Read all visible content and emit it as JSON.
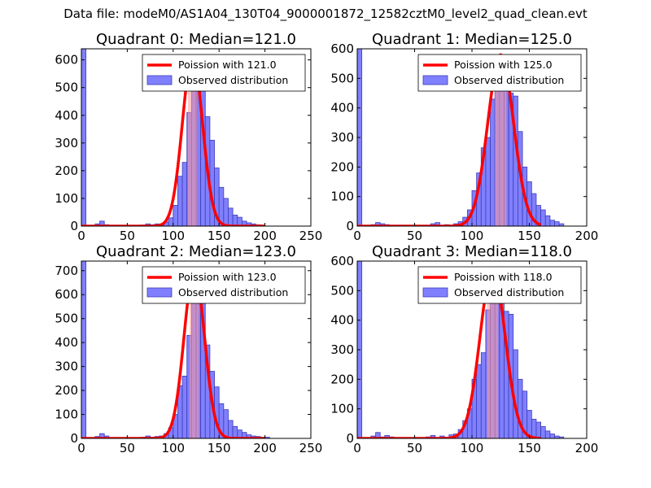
{
  "suptitle": "Data file: modeM0/AS1A04_130T04_9000001872_12582cztM0_level2_quad_clean.evt",
  "colors": {
    "bar_fill": "#8080ff",
    "bar_edge": "#3d3db8",
    "fit_line": "#ff0000",
    "band": "#ff9a9a"
  },
  "chart_data": [
    {
      "type": "bar",
      "title": "Quadrant 0: Median=121.0",
      "median": 121.0,
      "legend": {
        "placement": "top-right",
        "line_label": "Poission with 121.0",
        "bar_label": "Observed distribution"
      },
      "xlim": [
        0,
        250
      ],
      "ylim": [
        0,
        640
      ],
      "xticks": [
        0,
        50,
        100,
        150,
        200,
        250
      ],
      "yticks": [
        0,
        100,
        200,
        300,
        400,
        500,
        600
      ],
      "first_bin_value": 640,
      "bin_width": 5,
      "bins": [
        [
          15,
          8
        ],
        [
          20,
          18
        ],
        [
          25,
          5
        ],
        [
          65,
          4
        ],
        [
          70,
          8
        ],
        [
          75,
          5
        ],
        [
          80,
          8
        ],
        [
          85,
          5
        ],
        [
          90,
          15
        ],
        [
          95,
          30
        ],
        [
          100,
          75
        ],
        [
          105,
          180
        ],
        [
          110,
          230
        ],
        [
          115,
          410
        ],
        [
          120,
          510
        ],
        [
          125,
          555
        ],
        [
          130,
          505
        ],
        [
          135,
          395
        ],
        [
          140,
          310
        ],
        [
          145,
          210
        ],
        [
          150,
          140
        ],
        [
          155,
          100
        ],
        [
          160,
          65
        ],
        [
          165,
          40
        ],
        [
          170,
          32
        ],
        [
          175,
          18
        ],
        [
          180,
          12
        ],
        [
          185,
          8
        ],
        [
          190,
          5
        ],
        [
          195,
          4
        ]
      ],
      "fit_mean": 121.0,
      "fit_peak": 612
    },
    {
      "type": "bar",
      "title": "Quadrant 1: Median=125.0",
      "median": 125.0,
      "legend": {
        "placement": "top-right",
        "line_label": "Poission with 125.0",
        "bar_label": "Observed distribution"
      },
      "xlim": [
        0,
        200
      ],
      "ylim": [
        0,
        600
      ],
      "xticks": [
        0,
        50,
        100,
        150,
        200
      ],
      "yticks": [
        0,
        100,
        200,
        300,
        400,
        500,
        600
      ],
      "first_bin_value": 600,
      "bin_width": 4,
      "bins": [
        [
          12,
          5
        ],
        [
          16,
          12
        ],
        [
          20,
          8
        ],
        [
          24,
          5
        ],
        [
          64,
          8
        ],
        [
          68,
          12
        ],
        [
          76,
          5
        ],
        [
          84,
          8
        ],
        [
          88,
          15
        ],
        [
          92,
          30
        ],
        [
          96,
          55
        ],
        [
          100,
          120
        ],
        [
          104,
          180
        ],
        [
          108,
          265
        ],
        [
          112,
          300
        ],
        [
          116,
          430
        ],
        [
          120,
          545
        ],
        [
          124,
          580
        ],
        [
          128,
          540
        ],
        [
          132,
          450
        ],
        [
          136,
          440
        ],
        [
          140,
          320
        ],
        [
          144,
          200
        ],
        [
          148,
          150
        ],
        [
          152,
          110
        ],
        [
          156,
          70
        ],
        [
          160,
          55
        ],
        [
          164,
          35
        ],
        [
          168,
          20
        ],
        [
          172,
          15
        ],
        [
          176,
          8
        ]
      ],
      "fit_mean": 125.0,
      "fit_peak": 580
    },
    {
      "type": "bar",
      "title": "Quadrant 2: Median=123.0",
      "median": 123.0,
      "legend": {
        "placement": "top-right",
        "line_label": "Poission with 123.0",
        "bar_label": "Observed distribution"
      },
      "xlim": [
        0,
        250
      ],
      "ylim": [
        0,
        740
      ],
      "xticks": [
        0,
        50,
        100,
        150,
        200,
        250
      ],
      "yticks": [
        0,
        100,
        200,
        300,
        400,
        500,
        600,
        700
      ],
      "first_bin_value": 740,
      "bin_width": 5,
      "bins": [
        [
          15,
          8
        ],
        [
          20,
          20
        ],
        [
          25,
          10
        ],
        [
          65,
          5
        ],
        [
          70,
          10
        ],
        [
          75,
          5
        ],
        [
          80,
          8
        ],
        [
          85,
          10
        ],
        [
          90,
          20
        ],
        [
          95,
          45
        ],
        [
          100,
          100
        ],
        [
          105,
          220
        ],
        [
          110,
          260
        ],
        [
          115,
          430
        ],
        [
          120,
          585
        ],
        [
          125,
          620
        ],
        [
          130,
          580
        ],
        [
          135,
          390
        ],
        [
          140,
          280
        ],
        [
          145,
          215
        ],
        [
          150,
          145
        ],
        [
          155,
          120
        ],
        [
          160,
          75
        ],
        [
          165,
          50
        ],
        [
          170,
          35
        ],
        [
          175,
          25
        ],
        [
          180,
          15
        ],
        [
          185,
          10
        ],
        [
          190,
          8
        ],
        [
          195,
          5
        ],
        [
          200,
          5
        ]
      ],
      "fit_mean": 123.0,
      "fit_peak": 705
    },
    {
      "type": "bar",
      "title": "Quadrant 3: Median=118.0",
      "median": 118.0,
      "legend": {
        "placement": "top-right",
        "line_label": "Poission with 118.0",
        "bar_label": "Observed distribution"
      },
      "xlim": [
        0,
        200
      ],
      "ylim": [
        0,
        600
      ],
      "xticks": [
        0,
        50,
        100,
        150,
        200
      ],
      "yticks": [
        0,
        100,
        200,
        300,
        400,
        500,
        600
      ],
      "first_bin_value": 600,
      "bin_width": 4,
      "bins": [
        [
          12,
          8
        ],
        [
          16,
          20
        ],
        [
          20,
          5
        ],
        [
          24,
          10
        ],
        [
          28,
          5
        ],
        [
          60,
          5
        ],
        [
          64,
          10
        ],
        [
          72,
          8
        ],
        [
          80,
          12
        ],
        [
          84,
          15
        ],
        [
          88,
          30
        ],
        [
          92,
          60
        ],
        [
          96,
          100
        ],
        [
          100,
          200
        ],
        [
          104,
          250
        ],
        [
          108,
          290
        ],
        [
          112,
          435
        ],
        [
          116,
          550
        ],
        [
          120,
          580
        ],
        [
          124,
          560
        ],
        [
          128,
          430
        ],
        [
          132,
          420
        ],
        [
          136,
          300
        ],
        [
          140,
          200
        ],
        [
          144,
          160
        ],
        [
          148,
          95
        ],
        [
          152,
          65
        ],
        [
          156,
          55
        ],
        [
          160,
          40
        ],
        [
          164,
          25
        ],
        [
          168,
          15
        ],
        [
          172,
          8
        ],
        [
          176,
          5
        ]
      ],
      "fit_mean": 118.0,
      "fit_peak": 575
    }
  ]
}
